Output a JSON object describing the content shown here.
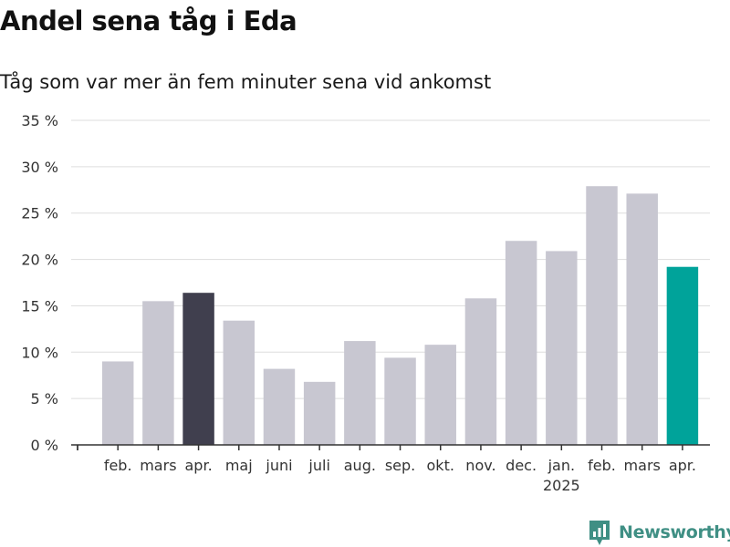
{
  "header": {
    "title": "Andel sena tåg i Eda",
    "subtitle": "Tåg som var mer än fem minuter sena vid ankomst"
  },
  "brand": {
    "name": "Newsworthy"
  },
  "colors": {
    "default_bar": "#c8c7d1",
    "previous_year_bar": "#403f4e",
    "current_bar": "#00a39a",
    "grid": "#dddddd",
    "axis": "#333333",
    "brand": "#3f8f84"
  },
  "chart_data": {
    "type": "bar",
    "categories": [
      "feb.",
      "mars",
      "apr.",
      "maj",
      "juni",
      "juli",
      "aug.",
      "sep.",
      "okt.",
      "nov.",
      "dec.",
      "jan.",
      "feb.",
      "mars",
      "apr."
    ],
    "year_labels": [
      {
        "index": 11,
        "label": "2025"
      }
    ],
    "values": [
      9.0,
      15.5,
      16.4,
      13.4,
      8.2,
      6.8,
      11.2,
      9.4,
      10.8,
      15.8,
      22.0,
      20.9,
      27.9,
      27.1,
      19.2
    ],
    "highlight": {
      "previous_year_index": 2,
      "current_index": 14
    },
    "ylim": [
      0,
      35
    ],
    "yticks": [
      0,
      5,
      10,
      15,
      20,
      25,
      30,
      35
    ],
    "ytick_suffix": " %",
    "xlabel": "",
    "ylabel": "",
    "grid": true,
    "legend": "none"
  }
}
